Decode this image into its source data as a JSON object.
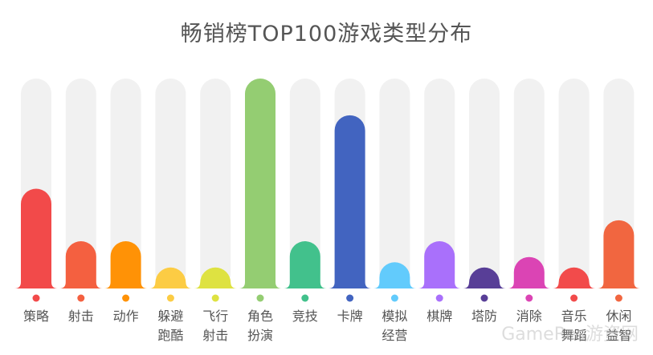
{
  "chart_data": {
    "type": "bar",
    "title": "畅销榜TOP100游戏类型分布",
    "categories": [
      [
        "策略"
      ],
      [
        "射击"
      ],
      [
        "动作"
      ],
      [
        "躲避",
        "跑酷"
      ],
      [
        "飞行",
        "射击"
      ],
      [
        "角色",
        "扮演"
      ],
      [
        "竞技"
      ],
      [
        "卡牌"
      ],
      [
        "模拟",
        "经营"
      ],
      [
        "棋牌"
      ],
      [
        "塔防"
      ],
      [
        "消除"
      ],
      [
        "音乐",
        "舞蹈"
      ],
      [
        "休闲",
        "益智"
      ]
    ],
    "values": [
      19,
      9,
      9,
      4,
      4,
      40,
      9,
      33,
      5,
      9,
      4,
      6,
      4,
      13
    ],
    "ylim": [
      0,
      40
    ],
    "colors": [
      "#f24a4a",
      "#f46040",
      "#ff9206",
      "#fccc44",
      "#dee241",
      "#94cd72",
      "#42c18c",
      "#4264c0",
      "#62cbfc",
      "#a970fb",
      "#583e97",
      "#db44b4",
      "#f24b4b",
      "#f16640"
    ],
    "track_color": "#f1f1f1",
    "background": "#ffffff"
  },
  "watermark": "GameRes游资网"
}
